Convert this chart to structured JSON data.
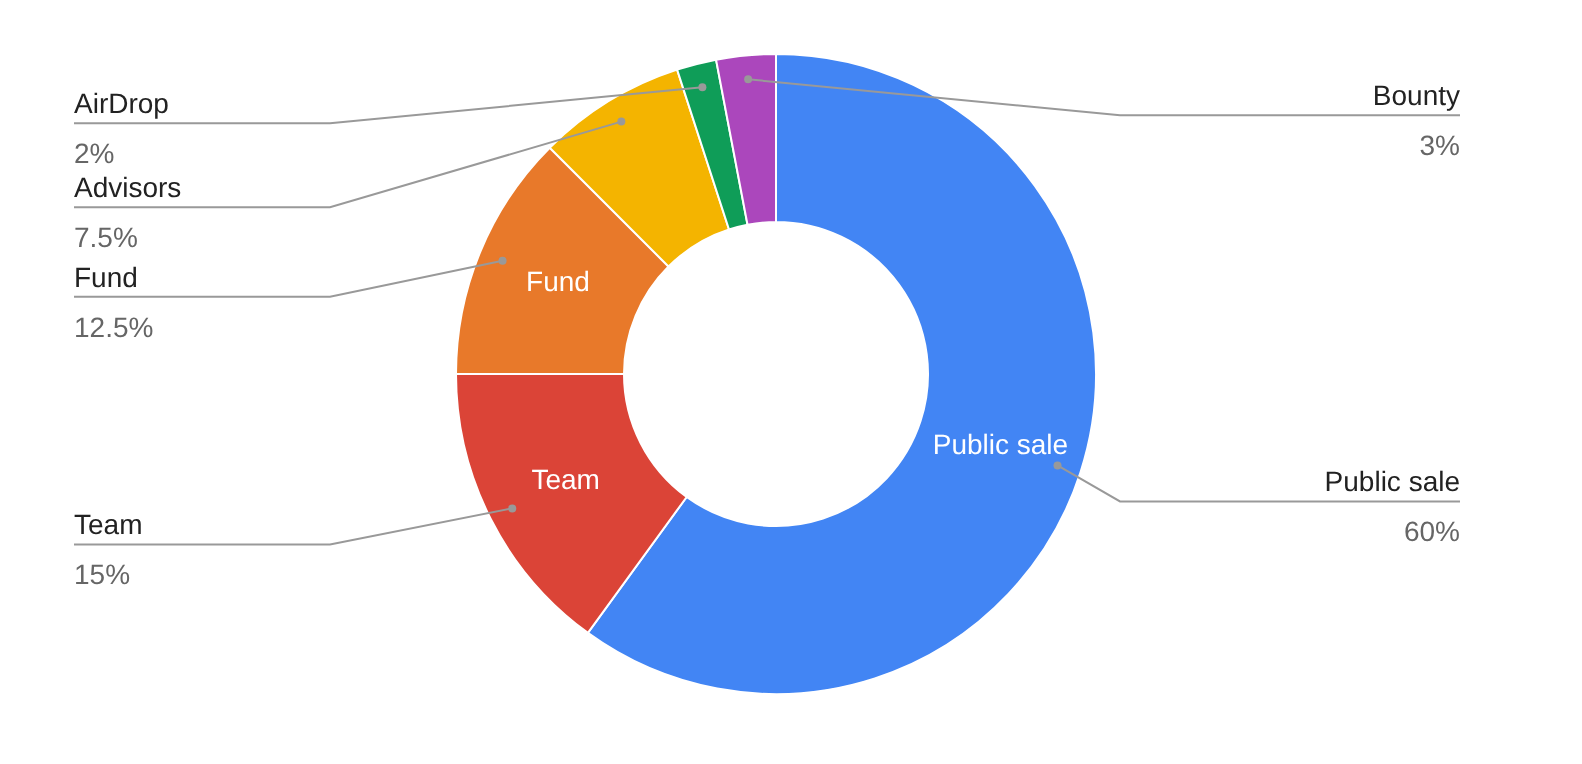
{
  "chart_data": {
    "type": "donut",
    "categories": [
      "Public sale",
      "Team",
      "Fund",
      "Advisors",
      "AirDrop",
      "Bounty"
    ],
    "values": [
      60,
      15,
      12.5,
      7.5,
      2,
      3
    ],
    "colors": [
      "#4285f4",
      "#db4437",
      "#e8792a",
      "#f4b400",
      "#0f9d58",
      "#ab47bc"
    ],
    "value_labels": [
      "60%",
      "15%",
      "12.5%",
      "7.5%",
      "2%",
      "3%"
    ]
  }
}
